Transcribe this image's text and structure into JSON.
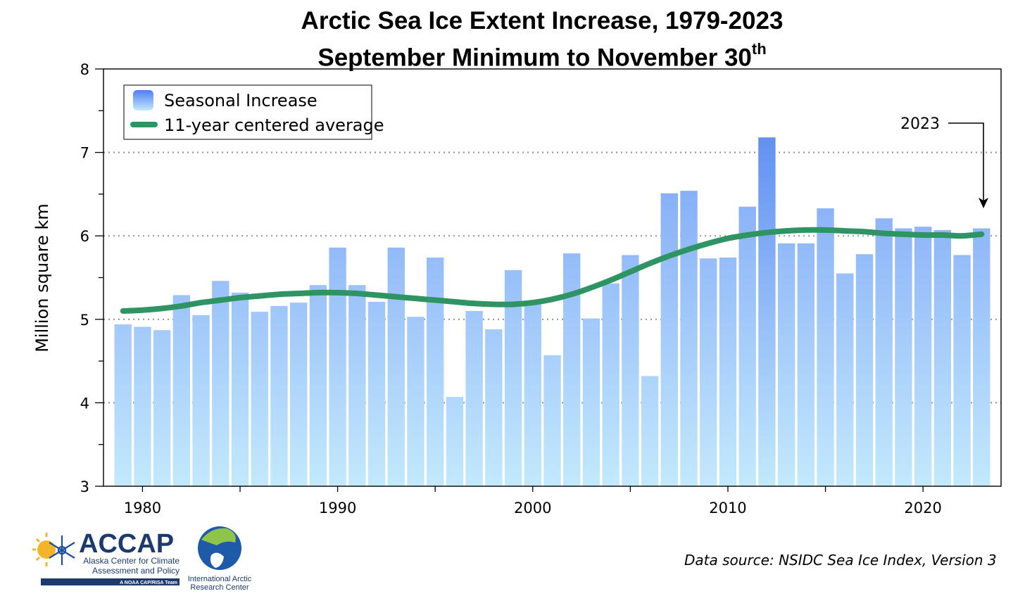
{
  "chart_data": {
    "type": "bar",
    "title_line1": "Arctic Sea Ice Extent Increase, 1979-2023",
    "title_line2": "September Minimum to November 30",
    "title_sup": "th",
    "xlabel": "",
    "ylabel": "Million square km",
    "ylim": [
      3,
      8
    ],
    "xlim": [
      1978,
      2024
    ],
    "y_ticks": [
      3,
      4,
      5,
      6,
      7,
      8
    ],
    "x_ticks": [
      1980,
      1990,
      2000,
      2010,
      2020
    ],
    "grid_y": [
      4,
      5,
      6,
      7
    ],
    "legend_position": "top-left",
    "annotation": "2023",
    "colors": {
      "bar_top": "#6f98f5",
      "bar_bottom": "#c3e9fd",
      "bar_top_2012": "#4f7ff0",
      "average": "#2e9463"
    },
    "series": [
      {
        "name": "Seasonal Increase",
        "x": [
          1979,
          1980,
          1981,
          1982,
          1983,
          1984,
          1985,
          1986,
          1987,
          1988,
          1989,
          1990,
          1991,
          1992,
          1993,
          1994,
          1995,
          1996,
          1997,
          1998,
          1999,
          2000,
          2001,
          2002,
          2003,
          2004,
          2005,
          2006,
          2007,
          2008,
          2009,
          2010,
          2011,
          2012,
          2013,
          2014,
          2015,
          2016,
          2017,
          2018,
          2019,
          2020,
          2021,
          2022,
          2023
        ],
        "values": [
          4.94,
          4.91,
          4.87,
          5.29,
          5.05,
          5.46,
          5.32,
          5.09,
          5.16,
          5.2,
          5.41,
          5.86,
          5.41,
          5.21,
          5.86,
          5.03,
          5.74,
          4.07,
          5.1,
          4.88,
          5.59,
          5.2,
          4.57,
          5.79,
          5.01,
          5.43,
          5.77,
          4.32,
          6.51,
          6.54,
          5.73,
          5.74,
          6.35,
          7.18,
          5.91,
          5.91,
          6.33,
          5.55,
          5.78,
          6.21,
          6.09,
          6.11,
          6.07,
          5.77,
          6.09
        ]
      },
      {
        "name": "11-year centered average",
        "x": [
          1979,
          1980,
          1981,
          1982,
          1983,
          1984,
          1985,
          1986,
          1987,
          1988,
          1989,
          1990,
          1991,
          1992,
          1993,
          1994,
          1995,
          1996,
          1997,
          1998,
          1999,
          2000,
          2001,
          2002,
          2003,
          2004,
          2005,
          2006,
          2007,
          2008,
          2009,
          2010,
          2011,
          2012,
          2013,
          2014,
          2015,
          2016,
          2017,
          2018,
          2019,
          2020,
          2021,
          2022,
          2023
        ],
        "values": [
          5.1,
          5.11,
          5.13,
          5.16,
          5.2,
          5.23,
          5.26,
          5.28,
          5.3,
          5.31,
          5.32,
          5.32,
          5.31,
          5.29,
          5.27,
          5.25,
          5.23,
          5.21,
          5.19,
          5.18,
          5.18,
          5.2,
          5.24,
          5.3,
          5.38,
          5.47,
          5.57,
          5.67,
          5.76,
          5.84,
          5.91,
          5.97,
          6.01,
          6.04,
          6.06,
          6.07,
          6.07,
          6.06,
          6.05,
          6.03,
          6.02,
          6.01,
          6.01,
          6.0,
          6.02
        ]
      }
    ]
  },
  "source_text": "Data source: NSIDC Sea Ice Index, Version 3",
  "logos": {
    "accap_word": "ACCAP",
    "accap_sub1": "Alaska Center for Climate",
    "accap_sub2": "Assessment and Policy",
    "accap_band": "A NOAA CAP/RISA Team",
    "iarc_line1": "International Arctic",
    "iarc_line2": "Research Center"
  }
}
